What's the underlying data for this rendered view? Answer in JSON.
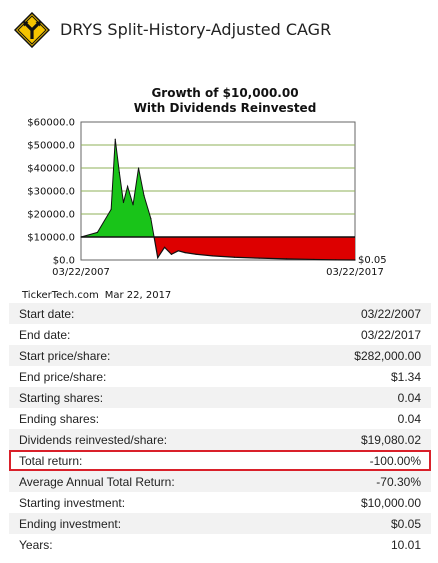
{
  "header": {
    "title": "DRYS Split-History-Adjusted CAGR",
    "logo_icon": "road-fork-sign-icon",
    "logo_color": "#f5c400"
  },
  "chart_data": {
    "type": "area",
    "title": "Growth of $10,000.00",
    "subtitle": "With Dividends Reinvested",
    "y_ticks": [
      "$60000.0",
      "$50000.0",
      "$40000.0",
      "$30000.0",
      "$20000.0",
      "$10000.0",
      "$0.0"
    ],
    "ylim": [
      0,
      60000
    ],
    "x_labels": [
      "03/22/2007",
      "03/22/2017"
    ],
    "end_value_label": "$0.05",
    "baseline": 10000,
    "gain_color": "#19c419",
    "loss_color": "#dd0000",
    "grid": true,
    "series": [
      {
        "x_years": [
          0,
          0.6,
          1.1,
          1.25,
          1.4,
          1.55,
          1.7,
          1.9,
          2.1,
          2.3,
          2.55,
          2.8,
          3.05,
          3.3,
          3.55,
          3.8,
          4.2,
          4.8,
          5.6,
          6.5,
          7.5,
          8.5,
          9.3,
          10.0
        ],
        "values": [
          10000,
          12000,
          22000,
          52500,
          38000,
          25000,
          32000,
          24000,
          40000,
          28000,
          18000,
          1000,
          5500,
          2500,
          4000,
          3200,
          2500,
          1800,
          1200,
          800,
          500,
          250,
          60,
          0.05
        ]
      }
    ]
  },
  "credit": {
    "source": "TickerTech.com",
    "date": "Mar 22, 2017"
  },
  "table": {
    "rows": [
      {
        "label": "Start date:",
        "value": "03/22/2007"
      },
      {
        "label": "End date:",
        "value": "03/22/2017"
      },
      {
        "label": "Start price/share:",
        "value": "$282,000.00"
      },
      {
        "label": "End price/share:",
        "value": "$1.34"
      },
      {
        "label": "Starting shares:",
        "value": "0.04"
      },
      {
        "label": "Ending shares:",
        "value": "0.04"
      },
      {
        "label": "Dividends reinvested/share:",
        "value": "$19,080.02"
      },
      {
        "label": "Total return:",
        "value": "-100.00%"
      },
      {
        "label": "Average Annual Total Return:",
        "value": "-70.30%"
      },
      {
        "label": "Starting investment:",
        "value": "$10,000.00"
      },
      {
        "label": "Ending investment:",
        "value": "$0.05"
      },
      {
        "label": "Years:",
        "value": "10.01"
      }
    ],
    "highlighted_row": 7,
    "highlight_color": "#d9202a"
  }
}
